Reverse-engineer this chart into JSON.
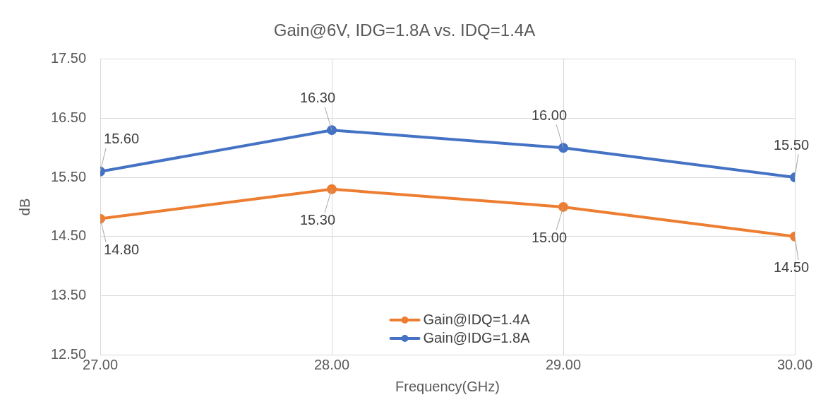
{
  "chart_data": {
    "type": "line",
    "title": "Gain@6V, IDG=1.8A vs. IDQ=1.4A",
    "xlabel": "Frequency(GHz)",
    "ylabel": "dB",
    "x": [
      27,
      28,
      29,
      30
    ],
    "series": [
      {
        "name": "Gain@IDQ=1.4A",
        "color": "#ed7d31",
        "values": [
          14.8,
          15.3,
          15.0,
          14.5
        ],
        "value_labels": [
          "14.80",
          "15.30",
          "15.00",
          "14.50"
        ]
      },
      {
        "name": "Gain@IDG=1.8A",
        "color": "#4472c4",
        "values": [
          15.6,
          16.3,
          16.0,
          15.5
        ],
        "value_labels": [
          "15.60",
          "16.30",
          "16.00",
          "15.50"
        ]
      }
    ],
    "xlim": [
      27,
      30
    ],
    "xticks": [
      {
        "value": 27,
        "label": "27.00"
      },
      {
        "value": 28,
        "label": "28.00"
      },
      {
        "value": 29,
        "label": "29.00"
      },
      {
        "value": 30,
        "label": "30.00"
      }
    ],
    "ylim": [
      12.5,
      17.5
    ],
    "yticks": [
      {
        "value": 12.5,
        "label": "12.50"
      },
      {
        "value": 13.5,
        "label": "13.50"
      },
      {
        "value": 14.5,
        "label": "14.50"
      },
      {
        "value": 15.5,
        "label": "15.50"
      },
      {
        "value": 16.5,
        "label": "16.50"
      },
      {
        "value": 17.5,
        "label": "17.50"
      }
    ],
    "grid": true,
    "legend": "bottom",
    "marker": "circle",
    "line_style": "solid"
  }
}
